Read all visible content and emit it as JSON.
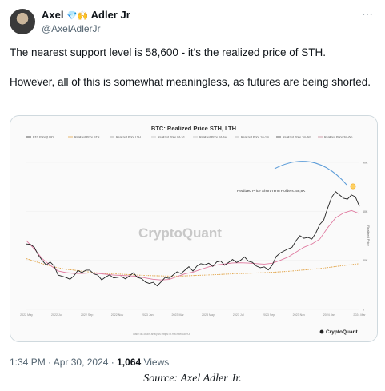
{
  "author": {
    "name": "Axel",
    "emoji": "💎🙌",
    "name_suffix": "Adler Jr",
    "handle": "@AxelAdlerJr"
  },
  "more_icon": "⋯",
  "tweet": {
    "paragraph1": "The nearest support level is 58,600 - it's the realized price of STH.",
    "paragraph2": "However, all of this is somewhat meaningless, as futures are being shorted."
  },
  "chart_data": {
    "type": "line",
    "title": "BTC: Realized Price STH, LTH",
    "legend": [
      "BTC Price [USD]",
      "Realized Price STH",
      "Realized Price LTH",
      "Realized Price 0d-1d",
      "Realized Price 1d-1w",
      "Realized Price 1w-1m",
      "Realized Price 1m-3m",
      "Realized Price 3m-6m"
    ],
    "watermark": "CryptoQuant",
    "annotation": "Realized Price Short-Term Holders: 58,6K",
    "ylabel": "Realized Price",
    "y_ticks": [
      "90K",
      "60K",
      "30K",
      "0"
    ],
    "x_ticks": [
      "2022 May",
      "2022 Jul",
      "2022 Sep",
      "2022 Nov",
      "2023 Jan",
      "2023 Mar",
      "2023 May",
      "2023 Jul",
      "2023 Sep",
      "2023 Nov",
      "2024 Jan",
      "2024 Mar"
    ],
    "footer_brand": "CryptoQuant",
    "footer_note": "Daily on-chain analysis: https://t.me/AxelAdlerJr",
    "series": [
      {
        "name": "BTC Price [USD]",
        "color": "#222222",
        "values": [
          40000,
          38000,
          30000,
          29000,
          21000,
          19500,
          20500,
          22500,
          24000,
          21000,
          19800,
          19200,
          20000,
          20500,
          19500,
          16800,
          16600,
          16900,
          19000,
          23000,
          24000,
          23500,
          28000,
          28200,
          29000,
          27000,
          30500,
          30000,
          29500,
          26500,
          26000,
          27000,
          34500,
          37000,
          42000,
          43500,
          43000,
          52000,
          62000,
          72000,
          68000,
          70000,
          63000
        ]
      },
      {
        "name": "Realized Price STH",
        "color": "#e07aa0",
        "values": [
          42000,
          37000,
          31000,
          27000,
          23500,
          22500,
          22000,
          22000,
          22300,
          22000,
          21500,
          21000,
          20800,
          20500,
          20200,
          19200,
          18400,
          18000,
          18300,
          20000,
          21800,
          22800,
          24500,
          26000,
          27200,
          27800,
          28400,
          28500,
          28300,
          28000,
          27700,
          28200,
          30000,
          32000,
          35000,
          38000,
          40000,
          43000,
          50000,
          56000,
          59000,
          60500,
          58600
        ]
      },
      {
        "name": "Realized Price LTH",
        "color": "#e0a040",
        "values": [
          31000,
          29500,
          28000,
          26500,
          25500,
          24500,
          24000,
          23500,
          22800,
          22300,
          22000,
          21800,
          21500,
          21300,
          21000,
          20800,
          20600,
          20500,
          20400,
          20400,
          20500,
          20700,
          20900,
          21100,
          21300,
          21500,
          21700,
          21900,
          22100,
          22300,
          22500,
          22700,
          23000,
          23300,
          23700,
          24100,
          24600,
          25000,
          25600,
          26200,
          26800,
          27400,
          28000
        ]
      }
    ]
  },
  "footer": {
    "time": "1:34 PM",
    "separator": " · ",
    "date": "Apr 30, 2024",
    "views": "1,064",
    "views_label": " Views"
  },
  "source_caption": "Source: Axel Adler Jr."
}
